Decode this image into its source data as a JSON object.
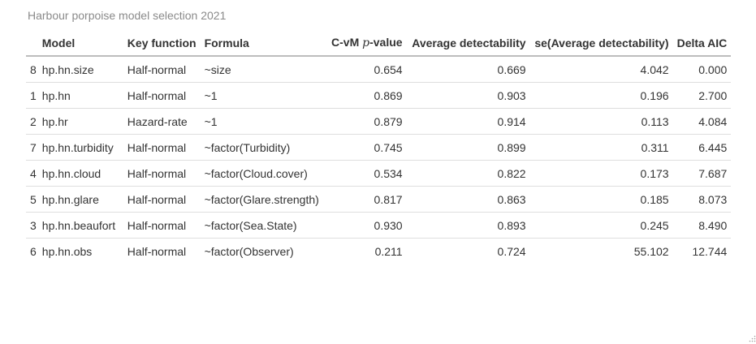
{
  "caption": "Harbour porpoise model selection 2021",
  "table": {
    "headers": {
      "index": "",
      "model": "Model",
      "key_function": "Key function",
      "formula": "Formula",
      "cvm_prefix": "C-vM ",
      "cvm_p": "p",
      "cvm_suffix": "-value",
      "avg_detectability": "Average detectability",
      "se_avg_detectability": "se(Average detectability)",
      "delta_aic": "Delta AIC"
    },
    "rows": [
      {
        "index": "8",
        "model": "hp.hn.size",
        "key_function": "Half-normal",
        "formula": "~size",
        "cvm_p": "0.654",
        "avg_detectability": "0.669",
        "se_avg_detectability": "4.042",
        "delta_aic": "0.000"
      },
      {
        "index": "1",
        "model": "hp.hn",
        "key_function": "Half-normal",
        "formula": "~1",
        "cvm_p": "0.869",
        "avg_detectability": "0.903",
        "se_avg_detectability": "0.196",
        "delta_aic": "2.700"
      },
      {
        "index": "2",
        "model": "hp.hr",
        "key_function": "Hazard-rate",
        "formula": "~1",
        "cvm_p": "0.879",
        "avg_detectability": "0.914",
        "se_avg_detectability": "0.113",
        "delta_aic": "4.084"
      },
      {
        "index": "7",
        "model": "hp.hn.turbidity",
        "key_function": "Half-normal",
        "formula": "~factor(Turbidity)",
        "cvm_p": "0.745",
        "avg_detectability": "0.899",
        "se_avg_detectability": "0.311",
        "delta_aic": "6.445"
      },
      {
        "index": "4",
        "model": "hp.hn.cloud",
        "key_function": "Half-normal",
        "formula": "~factor(Cloud.cover)",
        "cvm_p": "0.534",
        "avg_detectability": "0.822",
        "se_avg_detectability": "0.173",
        "delta_aic": "7.687"
      },
      {
        "index": "5",
        "model": "hp.hn.glare",
        "key_function": "Half-normal",
        "formula": "~factor(Glare.strength)",
        "cvm_p": "0.817",
        "avg_detectability": "0.863",
        "se_avg_detectability": "0.185",
        "delta_aic": "8.073"
      },
      {
        "index": "3",
        "model": "hp.hn.beaufort",
        "key_function": "Half-normal",
        "formula": "~factor(Sea.State)",
        "cvm_p": "0.930",
        "avg_detectability": "0.893",
        "se_avg_detectability": "0.245",
        "delta_aic": "8.490"
      },
      {
        "index": "6",
        "model": "hp.hn.obs",
        "key_function": "Half-normal",
        "formula": "~factor(Observer)",
        "cvm_p": "0.211",
        "avg_detectability": "0.724",
        "se_avg_detectability": "55.102",
        "delta_aic": "12.744"
      }
    ]
  },
  "icons": {
    "resize_handle": "resize-grip-icon"
  }
}
